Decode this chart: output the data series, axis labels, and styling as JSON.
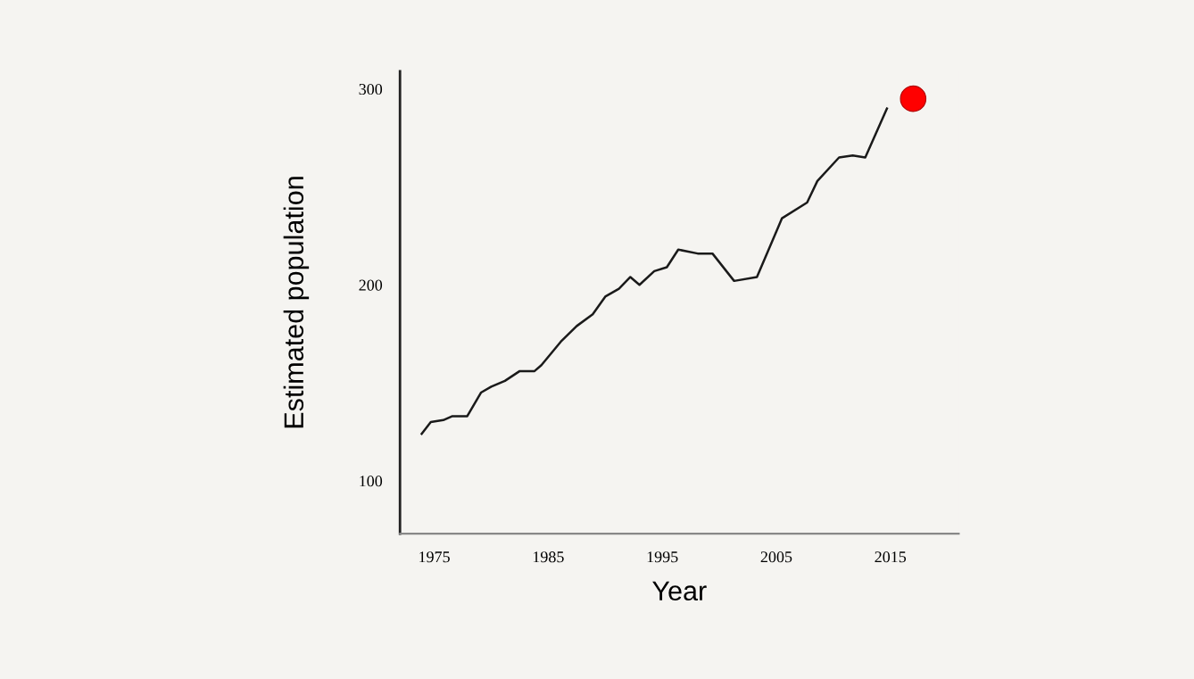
{
  "chart_data": {
    "type": "line",
    "xlabel": "Year",
    "ylabel": "Estimated population",
    "xlim": [
      1972,
      2021
    ],
    "ylim": [
      73,
      309
    ],
    "xticks": [
      1975,
      1985,
      1995,
      2005,
      2015
    ],
    "yticks": [
      100,
      200,
      300
    ],
    "grid": false,
    "legend": false,
    "line_style": "solid",
    "series": [
      {
        "marker": "none",
        "color": "#1a1a1a",
        "x": [
          1973.9,
          1974.7,
          1975.8,
          1976.6,
          1977.9,
          1979.1,
          1980.0,
          1981.2,
          1982.5,
          1983.8,
          1984.4,
          1986.1,
          1987.5,
          1988.9,
          1990.0,
          1991.2,
          1992.2,
          1993.0,
          1994.3,
          1995.4,
          1996.4,
          1998.1,
          1999.4,
          2001.3,
          2003.3,
          2005.5,
          2007.7,
          2008.6,
          2010.5,
          2011.7,
          2012.8,
          2014.7
        ],
        "values": [
          124,
          130,
          131,
          133,
          133,
          145,
          148,
          151,
          156,
          156,
          159,
          171,
          179,
          185,
          194,
          198,
          204,
          200,
          207,
          209,
          218,
          216,
          216,
          202,
          204,
          234,
          242,
          253,
          265,
          266,
          265,
          290
        ]
      },
      {
        "type": "scatter",
        "marker": "circle",
        "color": "#ff0000",
        "x": [
          2017.0
        ],
        "values": [
          295
        ]
      }
    ]
  }
}
